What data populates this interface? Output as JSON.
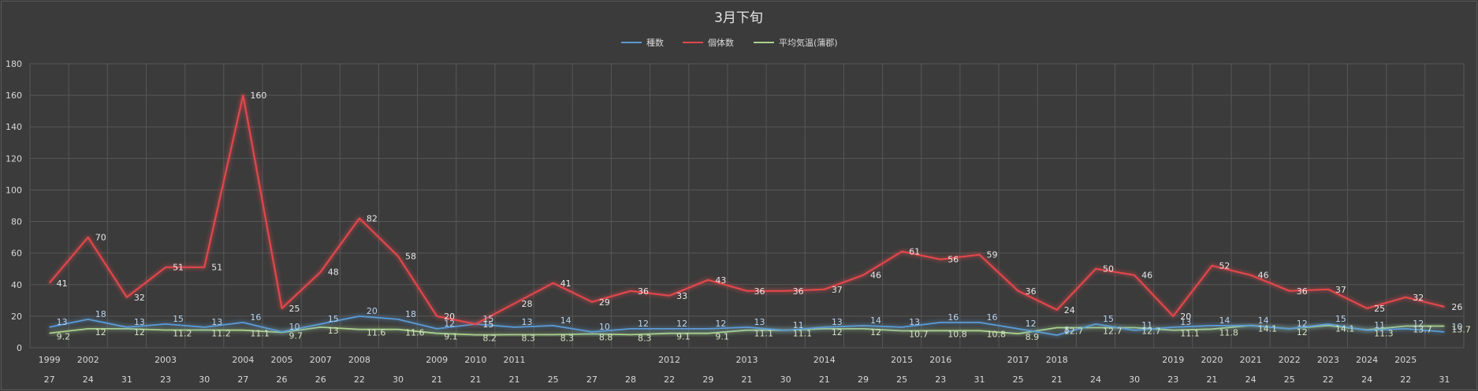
{
  "chart_data": {
    "type": "line",
    "title": "3月下旬",
    "legend_position": "top",
    "grid": true,
    "ylim": [
      0,
      180
    ],
    "yticks": [
      0,
      20,
      40,
      60,
      80,
      100,
      120,
      140,
      160,
      180
    ],
    "x_dates": [
      "27",
      "24",
      "31",
      "23",
      "30",
      "27",
      "26",
      "26",
      "22",
      "30",
      "21",
      "21",
      "21",
      "25",
      "27",
      "28",
      "22",
      "29",
      "21",
      "30",
      "21",
      "29",
      "25",
      "23",
      "31",
      "25",
      "21",
      "24",
      "30",
      "23",
      "21",
      "24",
      "25",
      "22",
      "24",
      "22",
      "31"
    ],
    "x_years": [
      "1999",
      "2002",
      "",
      "2003",
      "",
      "2004",
      "2005",
      "2007",
      "2008",
      "",
      "2009",
      "2010",
      "2011",
      "",
      "",
      "",
      "2012",
      "",
      "2013",
      "",
      "2014",
      "",
      "2015",
      "2016",
      "",
      "2017",
      "2018",
      "",
      "",
      "2019",
      "2020",
      "2021",
      "2022",
      "2023",
      "2024",
      "2025",
      ""
    ],
    "series": [
      {
        "name": "種数",
        "color": "#5b9bd5",
        "values": [
          13,
          18,
          13,
          15,
          13,
          16,
          10,
          15,
          20,
          18,
          12,
          15,
          13,
          14,
          10,
          12,
          12,
          12,
          13,
          11,
          13,
          14,
          13,
          16,
          16,
          12,
          8,
          15,
          11,
          13,
          14,
          14,
          12,
          15,
          11,
          12,
          10
        ]
      },
      {
        "name": "個体数",
        "color": "#e0474c",
        "values": [
          41,
          70,
          32,
          51,
          51,
          160,
          25,
          48,
          82,
          58,
          20,
          15,
          28,
          41,
          29,
          36,
          33,
          43,
          36,
          36,
          37,
          46,
          61,
          56,
          59,
          36,
          24,
          50,
          46,
          20,
          52,
          46,
          36,
          37,
          25,
          32,
          26
        ]
      },
      {
        "name": "平均気温(蒲郡)",
        "color": "#a9d18e",
        "values": [
          9.2,
          12,
          12,
          11.2,
          11.2,
          11.1,
          9.7,
          13,
          11.6,
          11.6,
          9.1,
          8.2,
          8.3,
          8.3,
          8.8,
          8.3,
          9.1,
          9.1,
          11.1,
          11.1,
          12,
          12,
          10.7,
          10.8,
          10.8,
          8.9,
          12.7,
          12.7,
          12.7,
          11.1,
          11.8,
          14.1,
          12,
          14.1,
          11.3,
          13.7,
          13.7
        ]
      }
    ]
  }
}
